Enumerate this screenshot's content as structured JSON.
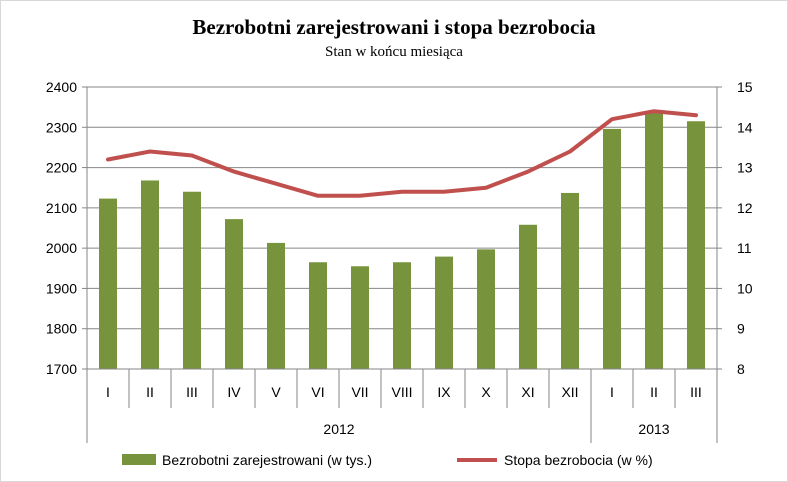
{
  "chart_data": {
    "type": "bar",
    "title": "Bezrobotni zarejestrowani i stopa bezrobocia",
    "subtitle": "Stan w końcu miesiąca",
    "categories": [
      "I",
      "II",
      "III",
      "IV",
      "V",
      "VI",
      "VII",
      "VIII",
      "IX",
      "X",
      "XI",
      "XII",
      "I",
      "II",
      "III"
    ],
    "year_groups": [
      {
        "label": "2012",
        "count": 12
      },
      {
        "label": "2013",
        "count": 3
      }
    ],
    "y_left": {
      "min": 1700,
      "max": 2400,
      "ticks": [
        1700,
        1800,
        1900,
        2000,
        2100,
        2200,
        2300,
        2400
      ]
    },
    "y_right": {
      "min": 8,
      "max": 15,
      "ticks": [
        8,
        9,
        10,
        11,
        12,
        13,
        14,
        15
      ]
    },
    "series": [
      {
        "name": "Bezrobotni zarejestrowani  (w tys.)",
        "type": "bar",
        "axis": "left",
        "color": "#77933C",
        "values": [
          2123,
          2168,
          2140,
          2072,
          2013,
          1965,
          1955,
          1965,
          1979,
          1997,
          2058,
          2137,
          2296,
          2336,
          2315
        ]
      },
      {
        "name": "Stopa bezrobocia   (w %)",
        "type": "line",
        "axis": "right",
        "color": "#C0504D",
        "values": [
          13.2,
          13.4,
          13.3,
          12.9,
          12.6,
          12.3,
          12.3,
          12.4,
          12.4,
          12.5,
          12.9,
          13.4,
          14.2,
          14.4,
          14.3
        ]
      }
    ],
    "legend_position": "bottom"
  }
}
